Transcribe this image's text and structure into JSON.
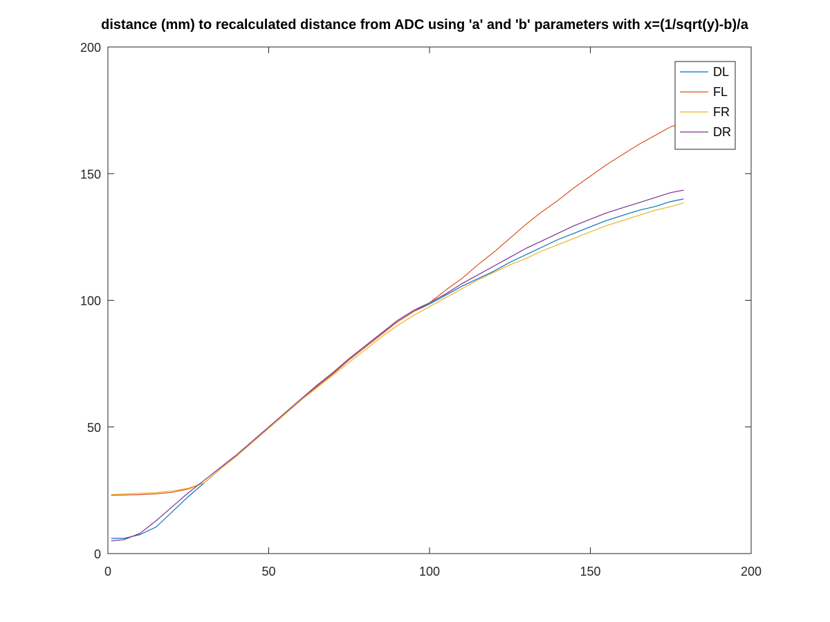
{
  "chart_data": {
    "type": "line",
    "title": "distance (mm) to recalculated distance from ADC using 'a' and 'b' parameters with x=(1/sqrt(y)-b)/a",
    "xlabel": "",
    "ylabel": "",
    "xlim": [
      0,
      200
    ],
    "ylim": [
      0,
      200
    ],
    "xticks": [
      0,
      50,
      100,
      150,
      200
    ],
    "yticks": [
      0,
      50,
      100,
      150,
      200
    ],
    "grid": false,
    "legend_position": "top-right",
    "series": [
      {
        "name": "DL",
        "color": "#0072bd",
        "x": [
          1,
          5,
          10,
          15,
          20,
          25,
          30,
          35,
          40,
          45,
          50,
          55,
          60,
          65,
          70,
          75,
          80,
          85,
          90,
          95,
          100,
          105,
          110,
          115,
          120,
          125,
          130,
          135,
          140,
          145,
          150,
          155,
          160,
          165,
          170,
          175,
          179
        ],
        "y": [
          6,
          6,
          7.5,
          10.5,
          16.5,
          22.5,
          28,
          33.5,
          38.5,
          44,
          49.5,
          55,
          60.5,
          66,
          71,
          76.5,
          81.5,
          86.5,
          91.5,
          95.5,
          98.5,
          102,
          105.5,
          108.5,
          111.5,
          115,
          118,
          121,
          124,
          126.5,
          129,
          131.5,
          133.5,
          135.5,
          137,
          139,
          140
        ]
      },
      {
        "name": "FL",
        "color": "#d95319",
        "x": [
          1,
          5,
          10,
          15,
          20,
          25,
          30,
          35,
          40,
          45,
          50,
          55,
          60,
          65,
          70,
          75,
          80,
          85,
          90,
          95,
          100,
          105,
          110,
          115,
          120,
          125,
          130,
          135,
          140,
          145,
          150,
          155,
          160,
          165,
          170,
          175,
          179
        ],
        "y": [
          23,
          23.1,
          23.3,
          23.6,
          24.2,
          25.5,
          28,
          33.5,
          38.5,
          44,
          49.5,
          55,
          60.5,
          66,
          71,
          76.5,
          81.5,
          86.5,
          91.5,
          95.5,
          99,
          104,
          108.5,
          114,
          119,
          124.5,
          130,
          135,
          139.5,
          144.5,
          149,
          153.5,
          157.5,
          161.5,
          165,
          168.5,
          170
        ]
      },
      {
        "name": "FR",
        "color": "#edb120",
        "x": [
          1,
          5,
          10,
          15,
          20,
          25,
          30,
          35,
          40,
          45,
          50,
          55,
          60,
          65,
          70,
          75,
          80,
          85,
          90,
          95,
          100,
          105,
          110,
          115,
          120,
          125,
          130,
          135,
          140,
          145,
          150,
          155,
          160,
          165,
          170,
          175,
          179
        ],
        "y": [
          23.3,
          23.5,
          23.8,
          24.1,
          24.7,
          25.8,
          28,
          33.5,
          38.5,
          44,
          49.5,
          55,
          60.5,
          65.5,
          70.5,
          75.5,
          80.5,
          85.5,
          90,
          94,
          97.5,
          101,
          104.5,
          108,
          111,
          114,
          116.5,
          119.5,
          122,
          124.5,
          127,
          129.5,
          131.5,
          133.5,
          135.5,
          137,
          138.5
        ]
      },
      {
        "name": "DR",
        "color": "#7e2f8e",
        "x": [
          1,
          5,
          10,
          15,
          20,
          25,
          30,
          35,
          40,
          45,
          50,
          55,
          60,
          65,
          70,
          75,
          80,
          85,
          90,
          95,
          100,
          105,
          110,
          115,
          120,
          125,
          130,
          135,
          140,
          145,
          150,
          155,
          160,
          165,
          170,
          175,
          179
        ],
        "y": [
          5,
          5.5,
          8,
          13,
          18.5,
          24,
          29,
          34,
          39,
          44.5,
          50,
          55.5,
          61,
          66.5,
          71.5,
          77,
          82,
          87,
          92,
          96,
          99,
          102.5,
          106.5,
          110,
          113.5,
          117,
          120.5,
          123.5,
          126.5,
          129.5,
          132,
          134.5,
          136.5,
          138.5,
          140.5,
          142.5,
          143.5
        ]
      }
    ]
  }
}
